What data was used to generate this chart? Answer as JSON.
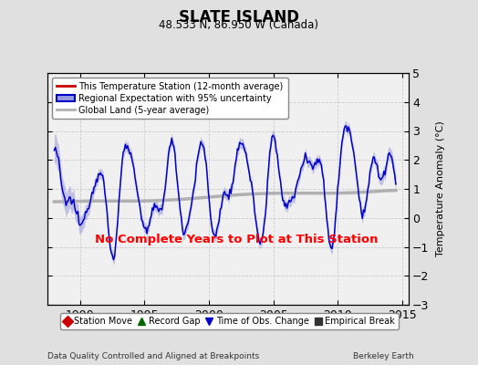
{
  "title": "SLATE ISLAND",
  "subtitle": "48.533 N, 86.950 W (Canada)",
  "ylabel": "Temperature Anomaly (°C)",
  "xlabel_left": "Data Quality Controlled and Aligned at Breakpoints",
  "xlabel_right": "Berkeley Earth",
  "no_data_text": "No Complete Years to Plot at This Station",
  "ylim": [
    -3,
    5
  ],
  "xlim": [
    1987.5,
    2015.5
  ],
  "xticks": [
    1990,
    1995,
    2000,
    2005,
    2010,
    2015
  ],
  "yticks": [
    -3,
    -2,
    -1,
    0,
    1,
    2,
    3,
    4,
    5
  ],
  "background_color": "#e0e0e0",
  "plot_background": "#f0f0f0",
  "grid_color": "#c8c8c8",
  "regional_line_color": "#0000cc",
  "regional_fill_color": "#9999dd",
  "station_line_color": "#cc0000",
  "global_line_color": "#b0b0b0",
  "legend_labels": [
    "This Temperature Station (12-month average)",
    "Regional Expectation with 95% uncertainty",
    "Global Land (5-year average)"
  ],
  "bottom_legend": [
    {
      "marker": "D",
      "color": "#cc0000",
      "label": "Station Move"
    },
    {
      "marker": "^",
      "color": "#006600",
      "label": "Record Gap"
    },
    {
      "marker": "v",
      "color": "#0000cc",
      "label": "Time of Obs. Change"
    },
    {
      "marker": "s",
      "color": "#333333",
      "label": "Empirical Break"
    }
  ]
}
